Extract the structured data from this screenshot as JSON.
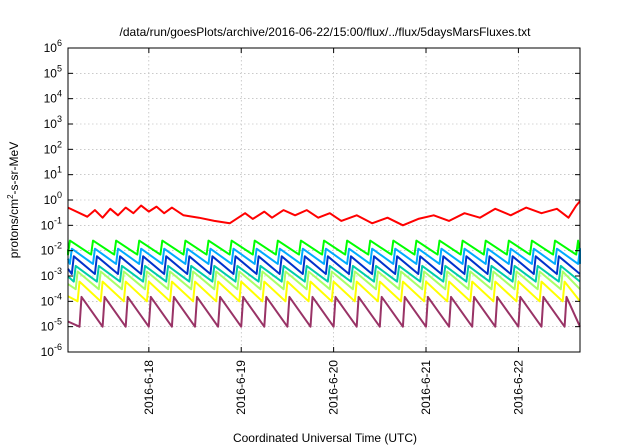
{
  "chart_data": {
    "type": "line",
    "title": "/data/run/goesPlots/archive/2016-06-22/15:00/flux/../flux/5daysMarsFluxes.txt",
    "xlabel": "Coordinated Universal Time (UTC)",
    "ylabel_parts": [
      "protons/cm",
      "2",
      "-s-sr-MeV"
    ],
    "y_scale": "log",
    "ylim": [
      -6,
      6
    ],
    "y_ticks": [
      {
        "exp": -6,
        "base": "10",
        "sup": "-6"
      },
      {
        "exp": -5,
        "base": "10",
        "sup": "-5"
      },
      {
        "exp": -4,
        "base": "10",
        "sup": "-4"
      },
      {
        "exp": -3,
        "base": "10",
        "sup": "-3"
      },
      {
        "exp": -2,
        "base": "10",
        "sup": "-2"
      },
      {
        "exp": -1,
        "base": "10",
        "sup": "-1"
      },
      {
        "exp": 0,
        "base": "10",
        "sup": "0"
      },
      {
        "exp": 1,
        "base": "10",
        "sup": "1"
      },
      {
        "exp": 2,
        "base": "10",
        "sup": "2"
      },
      {
        "exp": 3,
        "base": "10",
        "sup": "3"
      },
      {
        "exp": 4,
        "base": "10",
        "sup": "4"
      },
      {
        "exp": 5,
        "base": "10",
        "sup": "5"
      },
      {
        "exp": 6,
        "base": "10",
        "sup": "6"
      }
    ],
    "xlim": [
      "2016-6-17 03:00",
      "2016-6-22 16:00"
    ],
    "x_ticks": [
      "2016-6-18",
      "2016-6-19",
      "2016-6-20",
      "2016-6-21",
      "2016-6-22"
    ],
    "grid": true,
    "series": [
      {
        "color": "#ff0000",
        "x": [
          "2016-6-17 03:00",
          "2016-6-17 08:00",
          "2016-6-17 10:00",
          "2016-6-17 12:00",
          "2016-6-17 14:00",
          "2016-6-17 16:00",
          "2016-6-17 18:00",
          "2016-6-17 20:00",
          "2016-6-17 22:00",
          "2016-6-18 00:00",
          "2016-6-18 02:00",
          "2016-6-18 04:00",
          "2016-6-18 06:00",
          "2016-6-18 09:00",
          "2016-6-18 13:00",
          "2016-6-18 17:00",
          "2016-6-18 21:00",
          "2016-6-19 01:00",
          "2016-6-19 03:00",
          "2016-6-19 06:00",
          "2016-6-19 08:00",
          "2016-6-19 11:00",
          "2016-6-19 14:00",
          "2016-6-19 17:00",
          "2016-6-19 20:00",
          "2016-6-19 23:00",
          "2016-6-20 02:00",
          "2016-6-20 06:00",
          "2016-6-20 10:00",
          "2016-6-20 14:00",
          "2016-6-20 18:00",
          "2016-6-20 22:00",
          "2016-6-21 02:00",
          "2016-6-21 06:00",
          "2016-6-21 10:00",
          "2016-6-21 14:00",
          "2016-6-21 18:00",
          "2016-6-21 22:00",
          "2016-6-22 02:00",
          "2016-6-22 06:00",
          "2016-6-22 10:00",
          "2016-6-22 13:00",
          "2016-6-22 15:00",
          "2016-6-22 16:00"
        ],
        "y": [
          0.5,
          0.22,
          0.4,
          0.2,
          0.45,
          0.25,
          0.5,
          0.3,
          0.6,
          0.35,
          0.55,
          0.3,
          0.5,
          0.25,
          0.2,
          0.15,
          0.12,
          0.3,
          0.18,
          0.35,
          0.2,
          0.4,
          0.25,
          0.4,
          0.2,
          0.3,
          0.15,
          0.25,
          0.12,
          0.2,
          0.1,
          0.18,
          0.25,
          0.15,
          0.3,
          0.2,
          0.45,
          0.25,
          0.5,
          0.3,
          0.45,
          0.2,
          0.6,
          0.9
        ]
      },
      {
        "color": "#00ff00",
        "period_hours": 6,
        "start_hour": 0,
        "peak": 0.025,
        "trough": 0.007
      },
      {
        "color": "#00aaff",
        "period_hours": 6,
        "start_hour": 0.5,
        "peak": 0.012,
        "trough": 0.003
      },
      {
        "color": "#0033cc",
        "period_hours": 6,
        "start_hour": 1,
        "peak": 0.006,
        "trough": 0.0012
      },
      {
        "color": "#00ccaa",
        "period_hours": 6,
        "start_hour": 1.5,
        "peak": 0.0025,
        "trough": 0.0006
      },
      {
        "color": "#aaff66",
        "period_hours": 6,
        "start_hour": 2,
        "peak": 0.0015,
        "trough": 0.0003
      },
      {
        "color": "#ffff00",
        "period_hours": 6,
        "start_hour": 2.5,
        "peak": 0.0006,
        "trough": 0.0001
      },
      {
        "color": "#993366",
        "period_hours": 6,
        "start_hour": 3,
        "peak": 0.00015,
        "trough": 1e-05
      }
    ]
  }
}
